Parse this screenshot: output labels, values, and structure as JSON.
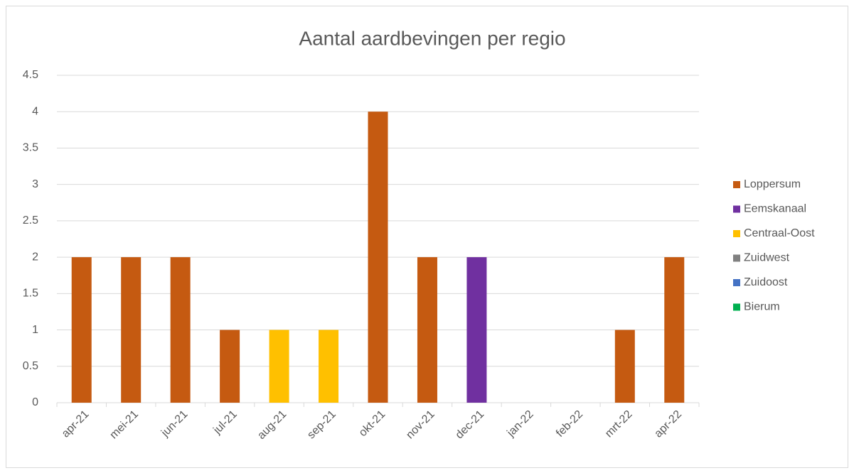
{
  "chart_data": {
    "type": "bar",
    "stacked": true,
    "title": "Aantal aardbevingen per regio",
    "categories": [
      "apr-21",
      "mei-21",
      "jun-21",
      "jul-21",
      "aug-21",
      "sep-21",
      "okt-21",
      "nov-21",
      "dec-21",
      "jan-22",
      "feb-22",
      "mrt-22",
      "apr-22"
    ],
    "series": [
      {
        "name": "Loppersum",
        "color": "#c55a11",
        "values": [
          2,
          2,
          2,
          1,
          0,
          0,
          4,
          2,
          0,
          0,
          0,
          1,
          2
        ]
      },
      {
        "name": "Eemskanaal",
        "color": "#7030a0",
        "values": [
          0,
          0,
          0,
          0,
          0,
          0,
          0,
          0,
          2,
          0,
          0,
          0,
          0
        ]
      },
      {
        "name": "Centraal-Oost",
        "color": "#ffc000",
        "values": [
          0,
          0,
          0,
          0,
          1,
          1,
          0,
          0,
          0,
          0,
          0,
          0,
          0
        ]
      },
      {
        "name": "Zuidwest",
        "color": "#808080",
        "values": [
          0,
          0,
          0,
          0,
          0,
          0,
          0,
          0,
          0,
          0,
          0,
          0,
          0
        ]
      },
      {
        "name": "Zuidoost",
        "color": "#4472c4",
        "values": [
          0,
          0,
          0,
          0,
          0,
          0,
          0,
          0,
          0,
          0,
          0,
          0,
          0
        ]
      },
      {
        "name": "Bierum",
        "color": "#00b050",
        "values": [
          0,
          0,
          0,
          0,
          0,
          0,
          0,
          0,
          0,
          0,
          0,
          0,
          0
        ]
      }
    ],
    "ylim": [
      0,
      4.5
    ],
    "yticks": [
      0,
      0.5,
      1,
      1.5,
      2,
      2.5,
      3,
      3.5,
      4,
      4.5
    ],
    "grid": true,
    "legend": "right"
  }
}
